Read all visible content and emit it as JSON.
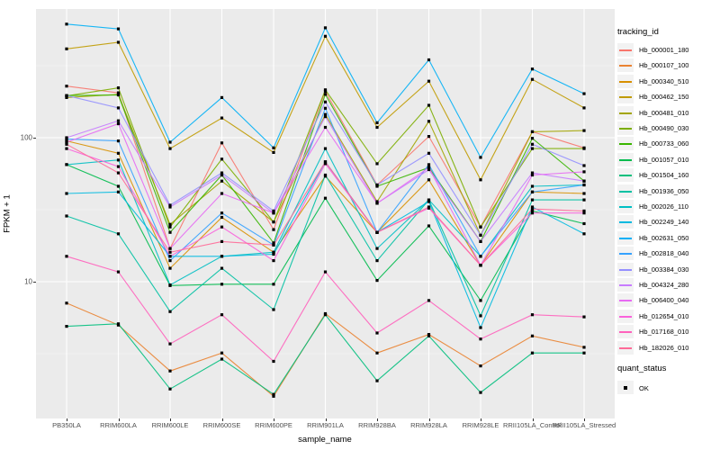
{
  "y_axis": {
    "title": "FPKM + 1",
    "ticks": [
      "100",
      "10"
    ]
  },
  "x_axis": {
    "title": "sample_name",
    "categories": [
      "PB350LA",
      "RRIM600LA",
      "RRIM600LE",
      "RRIM600SE",
      "RRIM600PE",
      "RRIM901LA",
      "RRIM928BA",
      "RRIM928LA",
      "RRIM928LE",
      "RRII105LA_Control",
      "RRII105LA_Stressed"
    ]
  },
  "legend": {
    "title": "tracking_id"
  },
  "quant_legend": {
    "title": "quant_status",
    "items": [
      {
        "label": "OK",
        "shape": "filled-square",
        "color": "#000000"
      }
    ]
  },
  "colors": {
    "panel": "#EBEBEB",
    "grid": "#FFFFFF",
    "point": "#000000",
    "tick_text": "#4D4D4D",
    "title_text": "#000000"
  },
  "chart_data": {
    "type": "line",
    "title": "",
    "xlabel": "sample_name",
    "ylabel": "FPKM + 1",
    "yscale": "log10",
    "ylim": [
      1.1,
      800
    ],
    "grid": "major-and-minor",
    "legend_position": "right",
    "point_shape": "filled-square-black",
    "x": [
      "PB350LA",
      "RRIM600LA",
      "RRIM600LE",
      "RRIM600SE",
      "RRIM600PE",
      "RRIM901LA",
      "RRIM928BA",
      "RRIM928LA",
      "RRIM928LE",
      "RRII105LA_Control",
      "RRII105LA_Stressed"
    ],
    "series": [
      {
        "name": "Hb_000001_180",
        "color": "#F8766D",
        "values": [
          228,
          205,
          17,
          92,
          23,
          210,
          47,
          102,
          24,
          110,
          85
        ]
      },
      {
        "name": "Hb_000107_100",
        "color": "#EA8331",
        "values": [
          7.1,
          5.0,
          2.4,
          3.2,
          1.6,
          6.0,
          3.2,
          4.3,
          2.6,
          4.2,
          3.5
        ]
      },
      {
        "name": "Hb_000340_510",
        "color": "#D89000",
        "values": [
          95,
          78,
          12.4,
          28,
          16,
          54,
          22,
          51,
          13,
          42,
          41
        ]
      },
      {
        "name": "Hb_000462_150",
        "color": "#C09B00",
        "values": [
          414,
          460,
          84,
          137,
          79,
          506,
          118,
          247,
          51,
          254,
          161
        ]
      },
      {
        "name": "Hb_000481_010",
        "color": "#A3A500",
        "values": [
          190,
          200,
          25,
          50,
          26,
          145,
          36,
          130,
          21,
          110,
          112
        ]
      },
      {
        "name": "Hb_000490_030",
        "color": "#7CAE00",
        "values": [
          195,
          222,
          24,
          71,
          26,
          215,
          66,
          168,
          24,
          84,
          84
        ]
      },
      {
        "name": "Hb_000733_060",
        "color": "#39B600",
        "values": [
          196,
          198,
          22,
          55,
          18.6,
          200,
          46,
          62,
          19,
          99,
          50
        ]
      },
      {
        "name": "Hb_001057_010",
        "color": "#00BB4E",
        "values": [
          65,
          46,
          9.4,
          9.6,
          9.6,
          38,
          10.2,
          24.4,
          7.4,
          31,
          25.3
        ]
      },
      {
        "name": "Hb_001504_160",
        "color": "#00BF7D",
        "values": [
          4.9,
          5.1,
          1.8,
          2.9,
          1.65,
          5.9,
          2.05,
          4.2,
          1.7,
          3.2,
          3.2
        ]
      },
      {
        "name": "Hb_001936_050",
        "color": "#00C1A3",
        "values": [
          28.6,
          21.5,
          6.2,
          12.4,
          6.4,
          55,
          14,
          37,
          5.8,
          37,
          37
        ]
      },
      {
        "name": "Hb_002026_110",
        "color": "#00BFC4",
        "values": [
          65,
          70,
          9.5,
          15,
          16,
          84,
          17,
          37,
          15,
          46,
          47
        ]
      },
      {
        "name": "Hb_002249_140",
        "color": "#00BAE0",
        "values": [
          41,
          42,
          15,
          15,
          15.5,
          68,
          22,
          36,
          4.8,
          33,
          21.5
        ]
      },
      {
        "name": "Hb_002631_050",
        "color": "#00B0F6",
        "values": [
          615,
          570,
          93,
          190,
          85,
          580,
          127,
          347,
          73,
          300,
          202
        ]
      },
      {
        "name": "Hb_002818_040",
        "color": "#35A2FF",
        "values": [
          98,
          95,
          14,
          30,
          18,
          160,
          22,
          65,
          15,
          42,
          47
        ]
      },
      {
        "name": "Hb_003384_030",
        "color": "#9590FF",
        "values": [
          196,
          161,
          34,
          57,
          31,
          177,
          47,
          78,
          21,
          90,
          64
        ]
      },
      {
        "name": "Hb_004324_280",
        "color": "#C77CFF",
        "values": [
          100,
          131,
          33,
          55,
          30,
          140,
          35,
          60,
          19,
          57,
          50
        ]
      },
      {
        "name": "Hb_006400_040",
        "color": "#E76BF3",
        "values": [
          93,
          125,
          17,
          41,
          30,
          118,
          35,
          62,
          13,
          55,
          58
        ]
      },
      {
        "name": "Hb_012654_010",
        "color": "#FA62DB",
        "values": [
          84,
          63,
          15,
          24,
          14,
          66,
          22,
          32.4,
          13,
          30,
          30
        ]
      },
      {
        "name": "Hb_017168_010",
        "color": "#FF62BC",
        "values": [
          15,
          11.7,
          3.7,
          5.9,
          2.8,
          11.7,
          4.4,
          7.4,
          4.0,
          5.9,
          5.7
        ]
      },
      {
        "name": "Hb_182026_010",
        "color": "#FF6A98",
        "values": [
          90,
          57,
          16,
          19,
          18,
          68,
          22,
          33,
          13,
          32,
          31
        ]
      }
    ]
  }
}
